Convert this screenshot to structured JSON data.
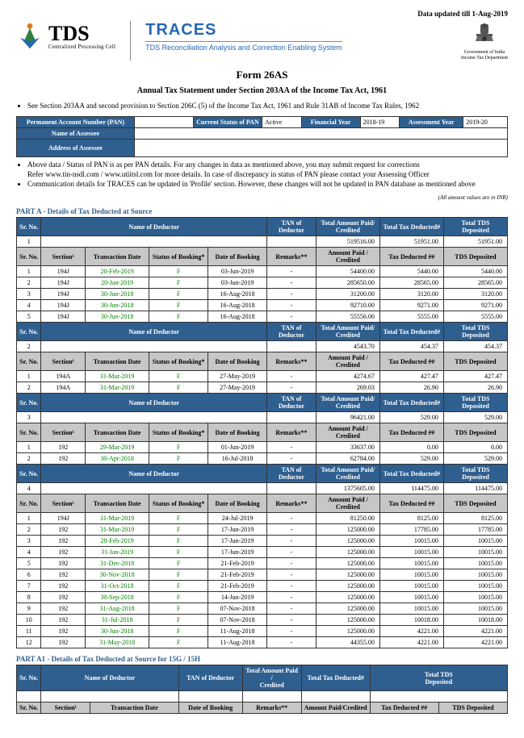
{
  "meta": {
    "data_updated": "Data updated till 1-Aug-2019"
  },
  "header": {
    "tds_big": "TDS",
    "tds_small": "Centralized Processing Cell",
    "traces_title": "TRACES",
    "traces_sub": "TDS Reconciliation Analysis and Correction Enabling System",
    "emblem_line1": "Government of India",
    "emblem_line2": "Income Tax Department"
  },
  "form": {
    "title": "Form 26AS",
    "subtitle": "Annual Tax Statement under Section 203AA of the Income Tax Act, 1961",
    "note_top": "See Section 203AA and second provision to Section 206C (5) of the Income Tax Act, 1961 and Rule 31AB of Income Tax Rules, 1962"
  },
  "pan": {
    "lbl_pan": "Permanent Account Number (PAN)",
    "lbl_status": "Current Status of PAN",
    "val_status": "Active",
    "lbl_fy": "Financial Year",
    "val_fy": "2018-19",
    "lbl_ay": "Assessment Year",
    "val_ay": "2019-20",
    "lbl_name": "Name of Assessee",
    "lbl_addr": "Address of Assessee"
  },
  "notes_mid": [
    "Above data / Status of PAN is as per PAN details. For any changes in data as mentioned above, you may submit request for corrections",
    "Refer www.tin-nsdl.com / www.utiitsl.com for more details. In case of discrepancy in status of PAN please contact your Assessing Officer",
    "Communication details for TRACES can be updated in 'Profile' section. However, these changes will not be updated in PAN database as mentioned above"
  ],
  "micro_note": "(All amount values are in INR)",
  "partA": {
    "title": "PART A - Details of Tax Deducted at Source",
    "cols_summary": [
      "Sr. No.",
      "Name of Deductor",
      "TAN of Deductor",
      "Total Amount Paid/\nCredited",
      "Total Tax Deducted#",
      "Total TDS\nDeposited"
    ],
    "cols_detail": [
      "Sr. No.",
      "Section¹",
      "Transaction Date",
      "Status of Booking*",
      "Date of Booking",
      "Remarks**",
      "Amount Paid /\nCredited",
      "Tax Deducted ##",
      "TDS Deposited"
    ],
    "groups": [
      {
        "sr": "1",
        "sum": {
          "amount": "519516.00",
          "tax": "51951.00",
          "tds": "51951.00"
        },
        "rows": [
          {
            "sr": "1",
            "section": "194J",
            "tdate": "20-Feb-2019",
            "status": "F",
            "bdate": "03-Jun-2019",
            "remarks": "-",
            "amount": "54400.00",
            "tax": "5440.00",
            "tds": "5440.00"
          },
          {
            "sr": "2",
            "section": "194J",
            "tdate": "20-Jan-2019",
            "status": "F",
            "bdate": "03-Jun-2019",
            "remarks": "-",
            "amount": "285650.00",
            "tax": "28565.00",
            "tds": "28565.00"
          },
          {
            "sr": "3",
            "section": "194J",
            "tdate": "30-Jun-2018",
            "status": "F",
            "bdate": "16-Aug-2018",
            "remarks": "-",
            "amount": "31200.00",
            "tax": "3120.00",
            "tds": "3120.00"
          },
          {
            "sr": "4",
            "section": "194J",
            "tdate": "30-Jun-2018",
            "status": "F",
            "bdate": "16-Aug-2018",
            "remarks": "-",
            "amount": "92710.00",
            "tax": "9271.00",
            "tds": "9271.00"
          },
          {
            "sr": "5",
            "section": "194J",
            "tdate": "30-Jun-2018",
            "status": "F",
            "bdate": "16-Aug-2018",
            "remarks": "-",
            "amount": "55556.00",
            "tax": "5555.00",
            "tds": "5555.00"
          }
        ]
      },
      {
        "sr": "2",
        "sum": {
          "amount": "4543.70",
          "tax": "454.37",
          "tds": "454.37"
        },
        "rows": [
          {
            "sr": "1",
            "section": "194A",
            "tdate": "31-Mar-2019",
            "status": "F",
            "bdate": "27-May-2019",
            "remarks": "-",
            "amount": "4274.67",
            "tax": "427.47",
            "tds": "427.47"
          },
          {
            "sr": "2",
            "section": "194A",
            "tdate": "31-Mar-2019",
            "status": "F",
            "bdate": "27-May-2019",
            "remarks": "-",
            "amount": "269.03",
            "tax": "26.90",
            "tds": "26.90"
          }
        ]
      },
      {
        "sr": "3",
        "sum": {
          "amount": "96421.00",
          "tax": "529.00",
          "tds": "529.00"
        },
        "rows": [
          {
            "sr": "1",
            "section": "192",
            "tdate": "29-Mar-2019",
            "status": "F",
            "bdate": "01-Jun-2019",
            "remarks": "-",
            "amount": "33637.00",
            "tax": "0.00",
            "tds": "0.00"
          },
          {
            "sr": "2",
            "section": "192",
            "tdate": "30-Apr-2018",
            "status": "F",
            "bdate": "16-Jul-2018",
            "remarks": "-",
            "amount": "62784.00",
            "tax": "529.00",
            "tds": "529.00"
          }
        ]
      },
      {
        "sr": "4",
        "sum": {
          "amount": "1375605.00",
          "tax": "114475.00",
          "tds": "114475.00"
        },
        "rows": [
          {
            "sr": "1",
            "section": "194J",
            "tdate": "31-Mar-2019",
            "status": "F",
            "bdate": "24-Jul-2019",
            "remarks": "-",
            "amount": "81250.00",
            "tax": "8125.00",
            "tds": "8125.00"
          },
          {
            "sr": "2",
            "section": "192",
            "tdate": "31-Mar-2019",
            "status": "F",
            "bdate": "17-Jun-2019",
            "remarks": "-",
            "amount": "125000.00",
            "tax": "17785.00",
            "tds": "17785.00"
          },
          {
            "sr": "3",
            "section": "192",
            "tdate": "28-Feb-2019",
            "status": "F",
            "bdate": "17-Jun-2019",
            "remarks": "-",
            "amount": "125000.00",
            "tax": "10015.00",
            "tds": "10015.00"
          },
          {
            "sr": "4",
            "section": "192",
            "tdate": "31-Jan-2019",
            "status": "F",
            "bdate": "17-Jun-2019",
            "remarks": "-",
            "amount": "125000.00",
            "tax": "10015.00",
            "tds": "10015.00"
          },
          {
            "sr": "5",
            "section": "192",
            "tdate": "31-Dec-2018",
            "status": "F",
            "bdate": "21-Feb-2019",
            "remarks": "-",
            "amount": "125000.00",
            "tax": "10015.00",
            "tds": "10015.00"
          },
          {
            "sr": "6",
            "section": "192",
            "tdate": "30-Nov-2018",
            "status": "F",
            "bdate": "21-Feb-2019",
            "remarks": "-",
            "amount": "125000.00",
            "tax": "10015.00",
            "tds": "10015.00"
          },
          {
            "sr": "7",
            "section": "192",
            "tdate": "31-Oct-2018",
            "status": "F",
            "bdate": "21-Feb-2019",
            "remarks": "-",
            "amount": "125000.00",
            "tax": "10015.00",
            "tds": "10015.00"
          },
          {
            "sr": "8",
            "section": "192",
            "tdate": "30-Sep-2018",
            "status": "F",
            "bdate": "14-Jun-2019",
            "remarks": "-",
            "amount": "125000.00",
            "tax": "10015.00",
            "tds": "10015.00"
          },
          {
            "sr": "9",
            "section": "192",
            "tdate": "31-Aug-2018",
            "status": "F",
            "bdate": "07-Nov-2018",
            "remarks": "-",
            "amount": "125000.00",
            "tax": "10015.00",
            "tds": "10015.00"
          },
          {
            "sr": "10",
            "section": "192",
            "tdate": "31-Jul-2018",
            "status": "F",
            "bdate": "07-Nov-2018",
            "remarks": "-",
            "amount": "125000.00",
            "tax": "10018.00",
            "tds": "10018.00"
          },
          {
            "sr": "11",
            "section": "192",
            "tdate": "30-Jun-2018",
            "status": "F",
            "bdate": "11-Aug-2018",
            "remarks": "-",
            "amount": "125000.00",
            "tax": "4221.00",
            "tds": "4221.00"
          },
          {
            "sr": "12",
            "section": "192",
            "tdate": "31-May-2018",
            "status": "F",
            "bdate": "11-Aug-2018",
            "remarks": "-",
            "amount": "44355.00",
            "tax": "4221.00",
            "tds": "4221.00"
          }
        ]
      }
    ]
  },
  "partA1": {
    "title": "PART A1 - Details of Tax Deducted at Source for 15G / 15H",
    "cols_summary": [
      "Sr. No.",
      "Name of Deductor",
      "TAN of Deductor",
      "Total Amount Paid /\nCredited",
      "Total Tax Deducted#",
      "Total TDS\nDeposited"
    ],
    "cols_detail": [
      "Sr. No.",
      "Section¹",
      "Transaction Date",
      "Date of Booking",
      "Remarks**",
      "Amount Paid/Credited",
      "Tax Deducted ##",
      "TDS Deposited"
    ]
  }
}
